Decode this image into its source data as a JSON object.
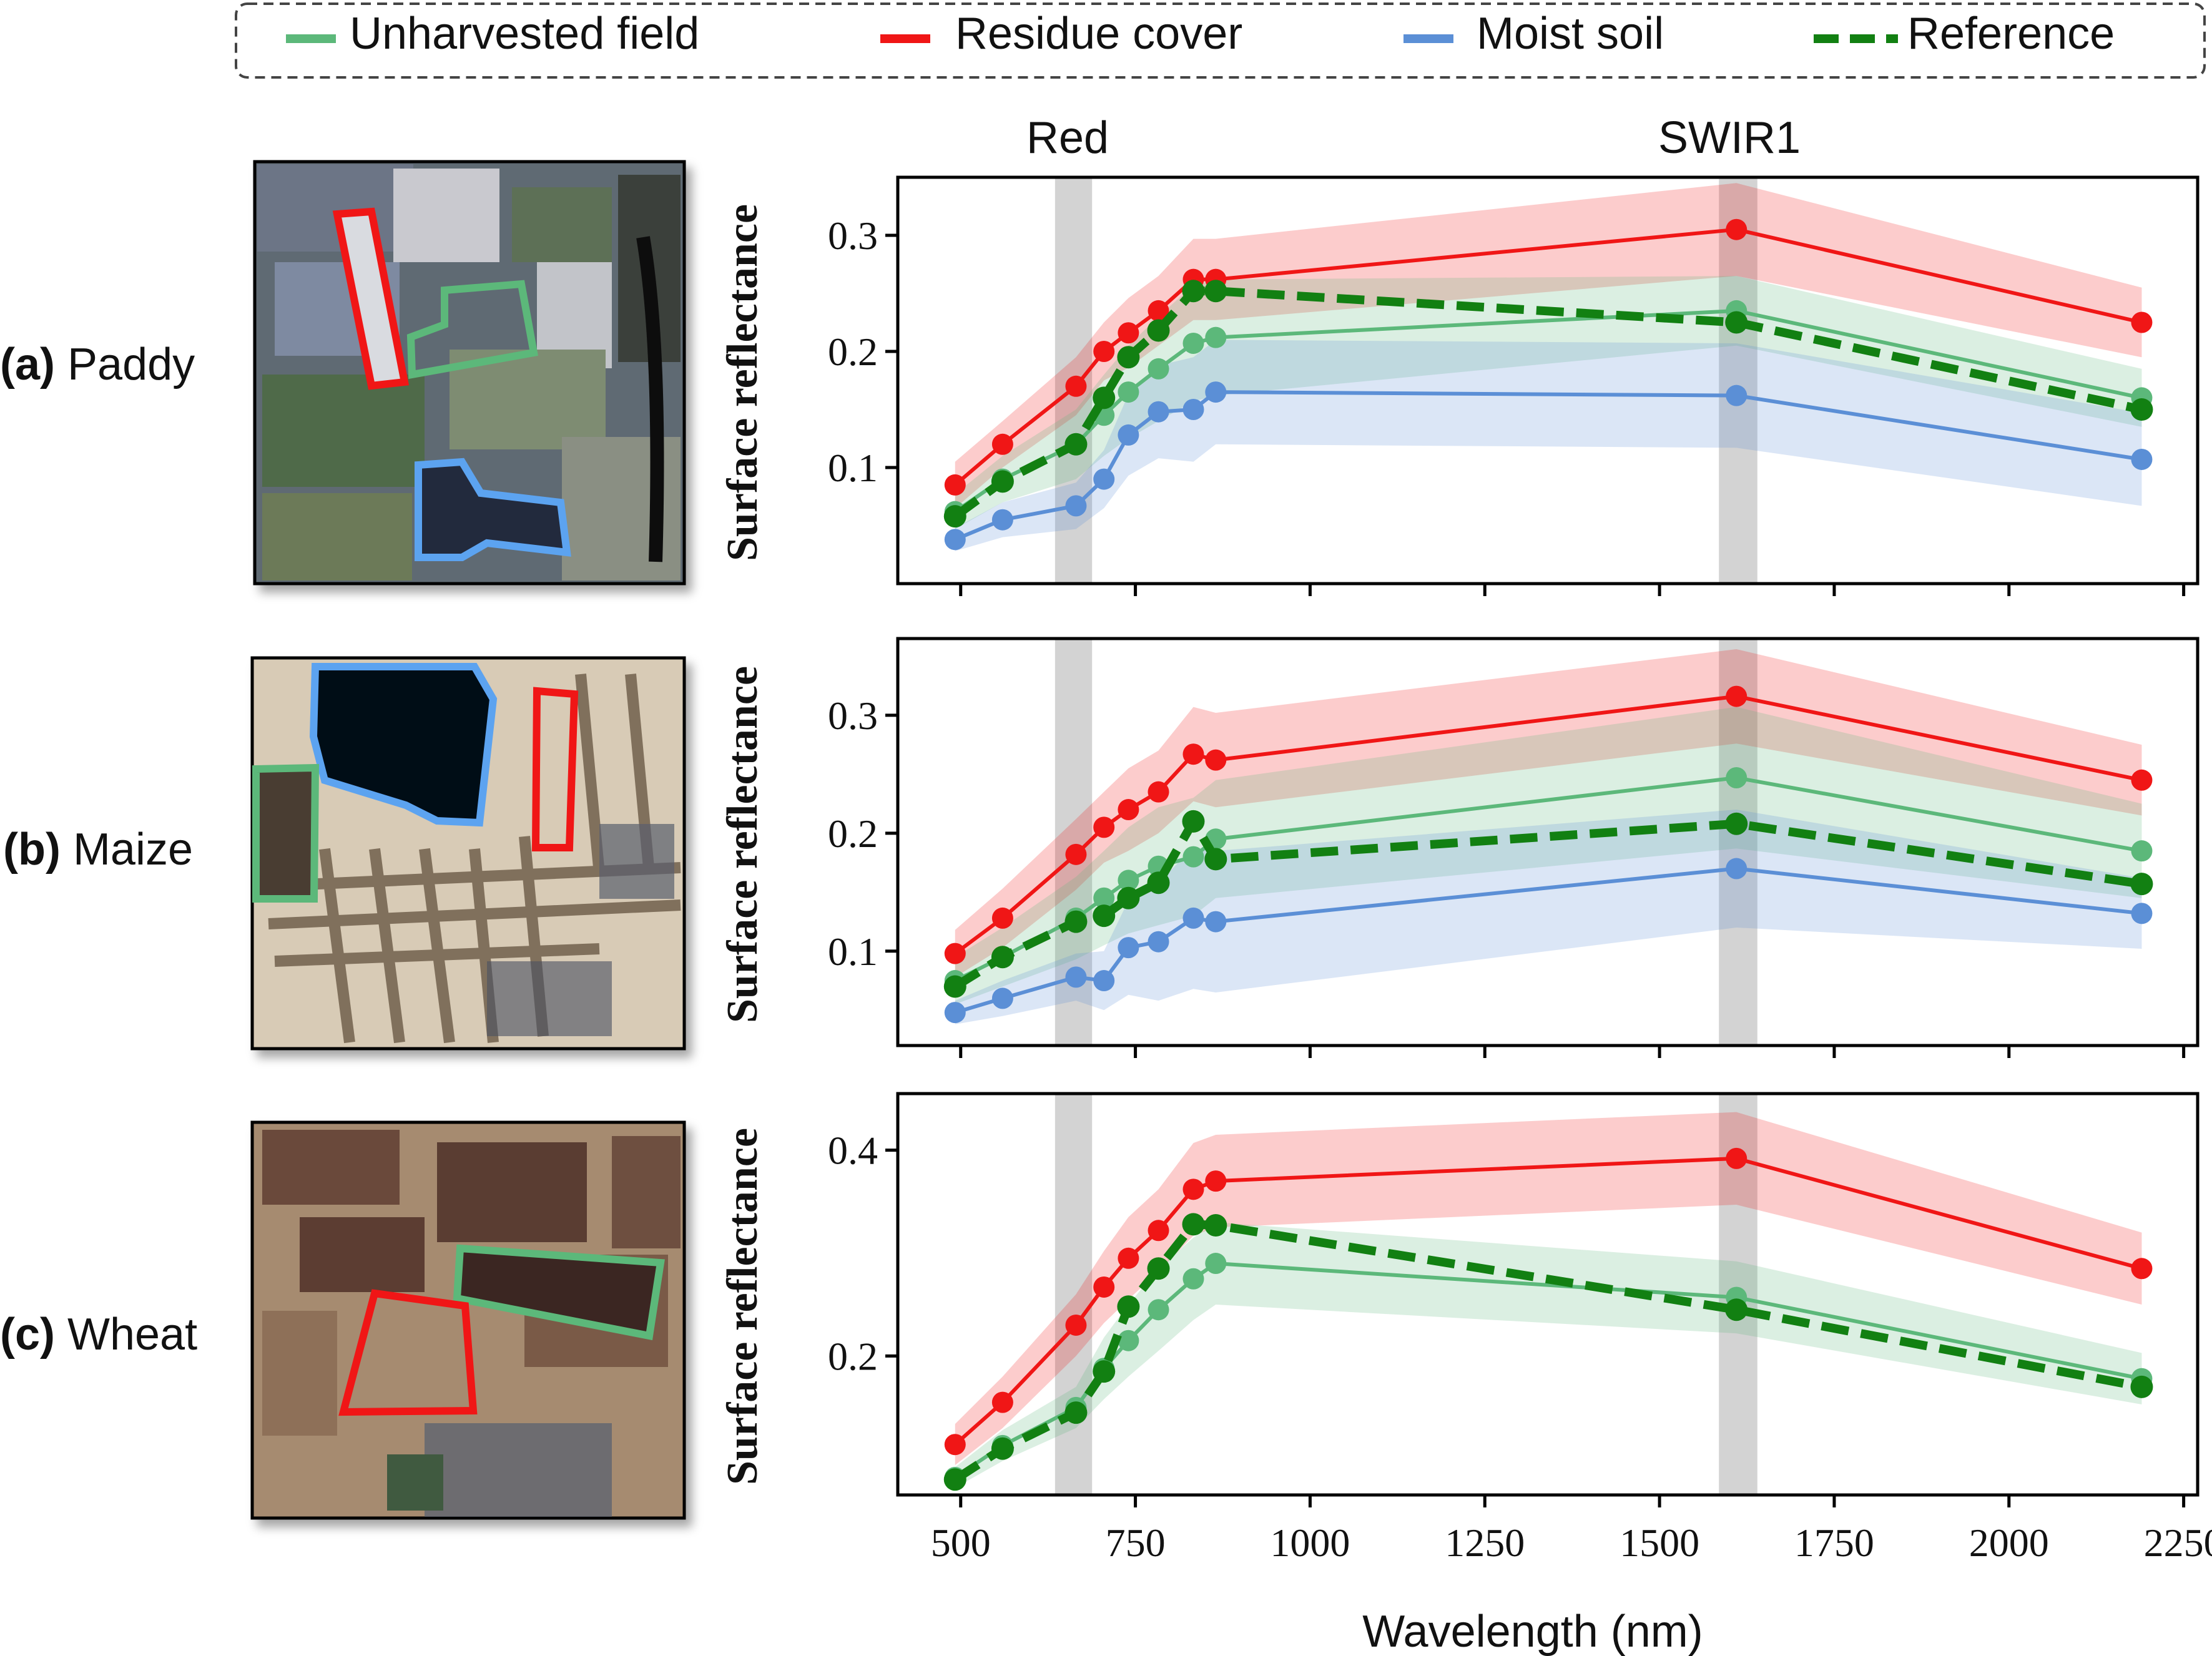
{
  "legend": {
    "items": [
      {
        "label": "Unharvested field",
        "color": "#5cb87a",
        "style": "solid"
      },
      {
        "label": "Residue cover",
        "color": "#f01616",
        "style": "solid"
      },
      {
        "label": "Moist soil",
        "color": "#5b8fd6",
        "style": "solid"
      },
      {
        "label": "Reference",
        "color": "#1a7a1a",
        "style": "dashed"
      }
    ]
  },
  "bands": {
    "red_label": "Red",
    "swir1_label": "SWIR1",
    "red_range": [
      635,
      688
    ],
    "swir1_range": [
      1585,
      1640
    ]
  },
  "colors": {
    "unharvested": "#5cb87a",
    "residue": "#f01616",
    "moist": "#5b8fd6",
    "reference": "#128012",
    "band_shade": "#d3d3d3"
  },
  "xlabel": "Wavelength (nm)",
  "xticks": [
    "500",
    "750",
    "1000",
    "1250",
    "1500",
    "1750",
    "2000",
    "2250"
  ],
  "chart_data": [
    {
      "type": "line",
      "panel_label": {
        "letter": "(a)",
        "name": "Paddy"
      },
      "xlabel": "Wavelength (nm)",
      "ylabel": "Surface reflectance",
      "xlim": [
        410,
        2270
      ],
      "ylim": [
        0.0,
        0.35
      ],
      "yticks": [
        "0.1",
        "0.2",
        "0.3"
      ],
      "x": [
        492,
        560,
        665,
        705,
        740,
        783,
        833,
        865,
        1610,
        2190
      ],
      "series": [
        {
          "name": "Residue cover",
          "values": [
            0.085,
            0.12,
            0.17,
            0.2,
            0.216,
            0.235,
            0.262,
            0.262,
            0.305,
            0.225
          ],
          "band_width": [
            0.02,
            0.02,
            0.025,
            0.025,
            0.03,
            0.03,
            0.035,
            0.035,
            0.04,
            0.03
          ]
        },
        {
          "name": "Unharvested field",
          "values": [
            0.062,
            0.09,
            0.12,
            0.145,
            0.165,
            0.185,
            0.207,
            0.212,
            0.235,
            0.16
          ],
          "band_width": [
            0.015,
            0.02,
            0.03,
            0.035,
            0.04,
            0.045,
            0.05,
            0.05,
            0.03,
            0.025
          ]
        },
        {
          "name": "Moist soil",
          "values": [
            0.038,
            0.055,
            0.067,
            0.09,
            0.128,
            0.148,
            0.15,
            0.165,
            0.162,
            0.107
          ],
          "band_width": [
            0.01,
            0.015,
            0.02,
            0.025,
            0.035,
            0.04,
            0.045,
            0.045,
            0.045,
            0.04
          ]
        },
        {
          "name": "Reference",
          "values": [
            0.058,
            0.088,
            0.12,
            0.16,
            0.195,
            0.218,
            0.252,
            0.252,
            0.225,
            0.15
          ]
        }
      ]
    },
    {
      "type": "line",
      "panel_label": {
        "letter": "(b)",
        "name": "Maize"
      },
      "xlabel": "Wavelength (nm)",
      "ylabel": "Surface reflectance",
      "xlim": [
        410,
        2270
      ],
      "ylim": [
        0.02,
        0.365
      ],
      "yticks": [
        "0.1",
        "0.2",
        "0.3"
      ],
      "x": [
        492,
        560,
        665,
        705,
        740,
        783,
        833,
        865,
        1610,
        2190
      ],
      "series": [
        {
          "name": "Residue cover",
          "values": [
            0.098,
            0.128,
            0.182,
            0.205,
            0.22,
            0.235,
            0.267,
            0.262,
            0.316,
            0.245
          ],
          "band_width": [
            0.02,
            0.025,
            0.03,
            0.03,
            0.035,
            0.035,
            0.04,
            0.04,
            0.04,
            0.03
          ]
        },
        {
          "name": "Unharvested field",
          "values": [
            0.075,
            0.095,
            0.128,
            0.145,
            0.16,
            0.172,
            0.18,
            0.195,
            0.247,
            0.185
          ],
          "band_width": [
            0.02,
            0.025,
            0.035,
            0.04,
            0.045,
            0.05,
            0.05,
            0.05,
            0.06,
            0.04
          ]
        },
        {
          "name": "Moist soil",
          "values": [
            0.048,
            0.06,
            0.078,
            0.075,
            0.103,
            0.108,
            0.128,
            0.125,
            0.17,
            0.132
          ],
          "band_width": [
            0.01,
            0.015,
            0.02,
            0.025,
            0.04,
            0.05,
            0.06,
            0.06,
            0.05,
            0.03
          ]
        },
        {
          "name": "Reference",
          "values": [
            0.07,
            0.095,
            0.125,
            0.13,
            0.145,
            0.158,
            0.21,
            0.178,
            0.208,
            0.157
          ]
        }
      ]
    },
    {
      "type": "line",
      "panel_label": {
        "letter": "(c)",
        "name": "Wheat"
      },
      "xlabel": "Wavelength (nm)",
      "ylabel": "Surface reflectance",
      "xlim": [
        410,
        2270
      ],
      "ylim": [
        0.065,
        0.455
      ],
      "yticks": [
        "0.2",
        "0.4"
      ],
      "x": [
        492,
        560,
        665,
        705,
        740,
        783,
        833,
        865,
        1610,
        2190
      ],
      "series": [
        {
          "name": "Residue cover",
          "values": [
            0.114,
            0.155,
            0.23,
            0.267,
            0.295,
            0.322,
            0.362,
            0.37,
            0.392,
            0.285
          ],
          "band_width": [
            0.02,
            0.025,
            0.03,
            0.035,
            0.04,
            0.04,
            0.045,
            0.045,
            0.045,
            0.035
          ]
        },
        {
          "name": "Unharvested field",
          "values": [
            0.082,
            0.113,
            0.15,
            0.188,
            0.215,
            0.245,
            0.275,
            0.29,
            0.257,
            0.178
          ],
          "band_width": [
            0.01,
            0.015,
            0.02,
            0.03,
            0.035,
            0.04,
            0.04,
            0.04,
            0.035,
            0.025
          ]
        },
        {
          "name": "Reference",
          "values": [
            0.08,
            0.11,
            0.145,
            0.185,
            0.248,
            0.285,
            0.328,
            0.327,
            0.245,
            0.17
          ]
        }
      ]
    }
  ]
}
